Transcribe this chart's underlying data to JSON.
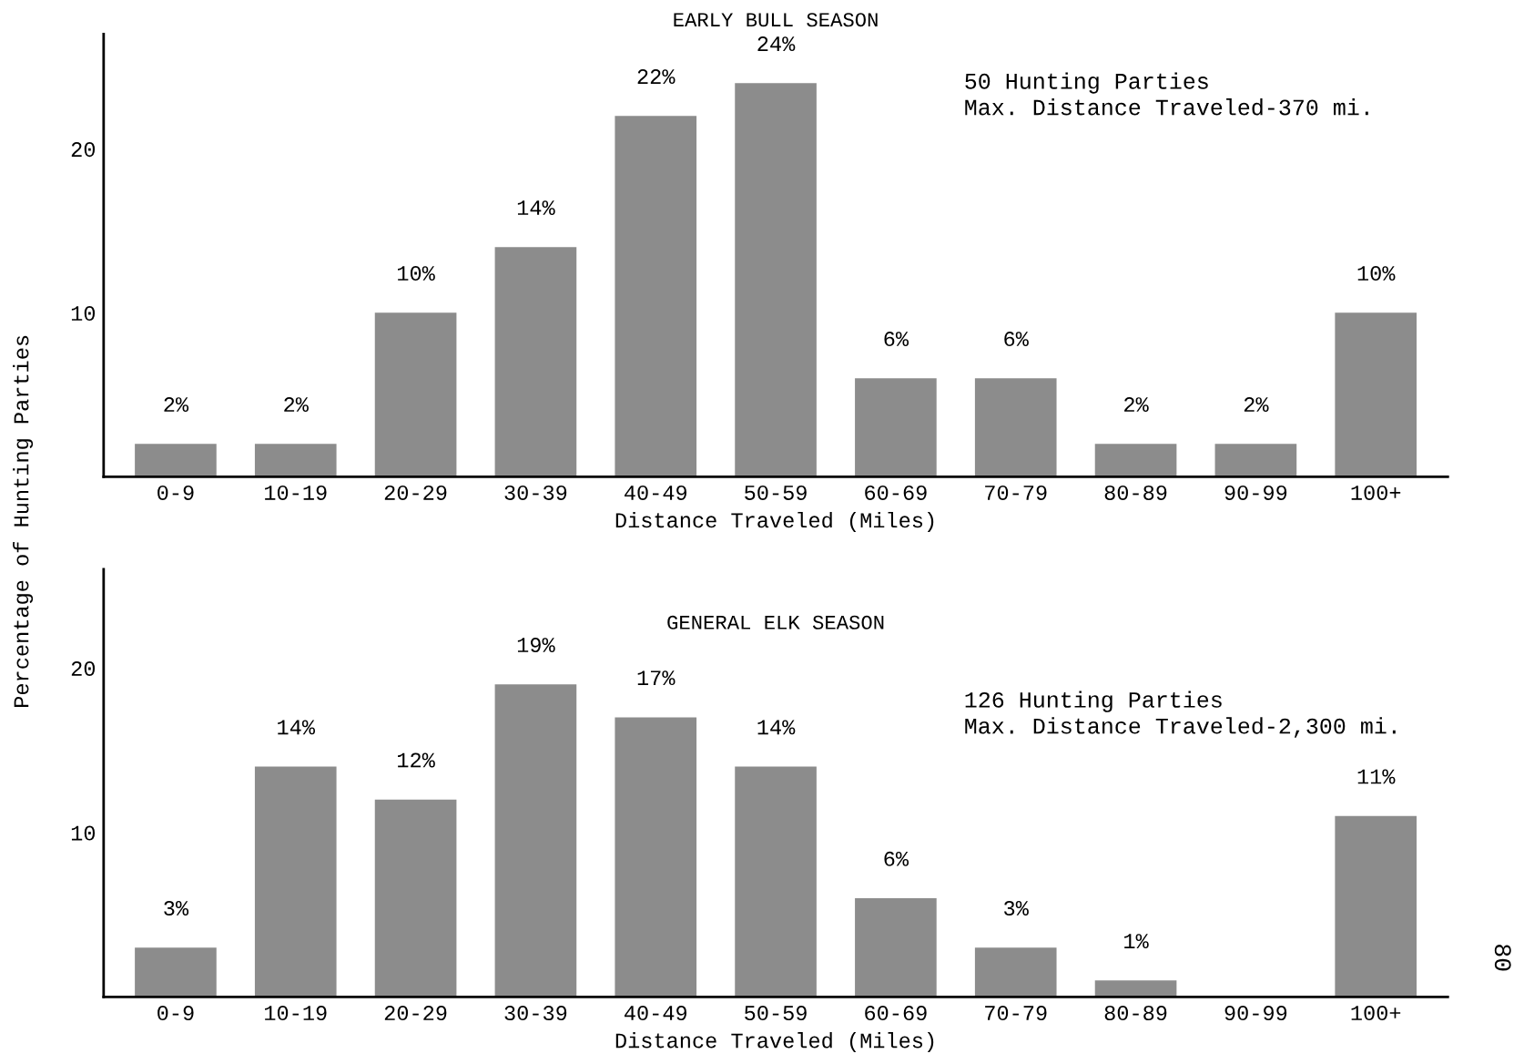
{
  "chart_data": [
    {
      "type": "bar",
      "title": "EARLY BULL SEASON",
      "xlabel": "Distance Traveled (Miles)",
      "ylabel": "Percentage of Hunting Parties",
      "categories": [
        "0-9",
        "10-19",
        "20-29",
        "30-39",
        "40-49",
        "50-59",
        "60-69",
        "70-79",
        "80-89",
        "90-99",
        "100+"
      ],
      "values": [
        2,
        2,
        10,
        14,
        22,
        24,
        6,
        6,
        2,
        2,
        10
      ],
      "value_labels": [
        "2%",
        "2%",
        "10%",
        "14%",
        "22%",
        "24%",
        "6%",
        "6%",
        "2%",
        "2%",
        "10%"
      ],
      "color": "#8c8c8c",
      "ylim": [
        0,
        27
      ],
      "yticks": [
        10,
        20
      ],
      "grid": false,
      "legend": false,
      "annotations": [
        "50 Hunting Parties\nMax. Distance Traveled-370 mi."
      ]
    },
    {
      "type": "bar",
      "title": "GENERAL ELK SEASON",
      "xlabel": "Distance Traveled (Miles)",
      "categories": [
        "0-9",
        "10-19",
        "20-29",
        "30-39",
        "40-49",
        "50-59",
        "60-69",
        "70-79",
        "80-89",
        "90-99",
        "100+"
      ],
      "values": [
        3,
        14,
        12,
        19,
        17,
        14,
        6,
        3,
        1,
        null,
        11
      ],
      "value_labels": [
        "3%",
        "14%",
        "12%",
        "19%",
        "17%",
        "14%",
        "6%",
        "3%",
        "1%",
        null,
        "11%"
      ],
      "color": "#8c8c8c",
      "ylim": [
        0,
        26
      ],
      "yticks": [
        10,
        20
      ],
      "grid": false,
      "legend": false,
      "annotations": [
        "126 Hunting Parties\nMax. Distance Traveled-2,300 mi.",
        "80"
      ]
    }
  ]
}
